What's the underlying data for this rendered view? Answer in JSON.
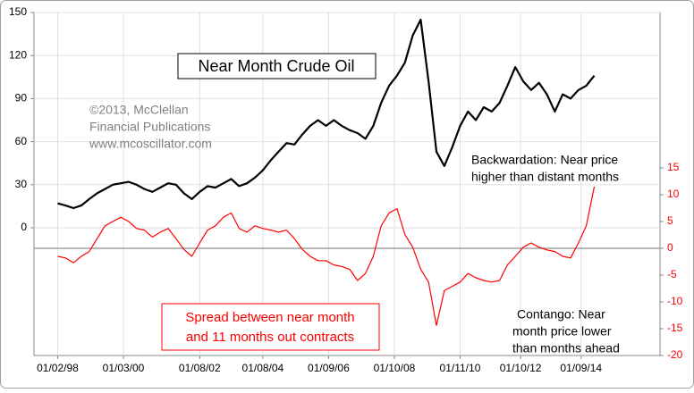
{
  "chart_data": {
    "type": "line",
    "title": "Near Month Crude Oil",
    "annotations": {
      "copyright": [
        "©2013, McClellan",
        "Financial Publications",
        "www.mcoscillator.com"
      ],
      "backwardation": [
        "Backwardation: Near price",
        "higher than distant months"
      ],
      "contango": [
        "Contango: Near",
        "month price lower",
        "than months ahead"
      ],
      "spread_note": [
        "Spread between near month",
        "and 11 months out contracts"
      ]
    },
    "x": [
      "01/02/98",
      "01/05/98",
      "01/08/98",
      "01/11/98",
      "01/02/99",
      "01/05/99",
      "01/08/99",
      "01/11/99",
      "01/02/00",
      "01/05/00",
      "01/08/00",
      "01/11/00",
      "01/02/01",
      "01/05/01",
      "01/08/01",
      "01/11/01",
      "01/02/02",
      "01/05/02",
      "01/08/02",
      "01/11/02",
      "01/02/03",
      "01/05/03",
      "01/08/03",
      "01/11/03",
      "01/02/04",
      "01/05/04",
      "01/08/04",
      "01/11/04",
      "01/02/05",
      "01/05/05",
      "01/08/05",
      "01/11/05",
      "01/02/06",
      "01/05/06",
      "01/08/06",
      "01/11/06",
      "01/02/07",
      "01/05/07",
      "01/08/07",
      "01/11/07",
      "01/02/08",
      "01/05/08",
      "01/08/08",
      "01/11/08",
      "01/02/09",
      "01/05/09",
      "01/08/09",
      "01/11/09",
      "01/02/10",
      "01/05/10",
      "01/08/10",
      "01/11/10",
      "01/02/11",
      "01/05/11",
      "01/08/11",
      "01/11/11",
      "01/02/12",
      "01/05/12",
      "01/08/12",
      "01/11/12",
      "01/02/13",
      "01/05/13",
      "01/08/13",
      "01/11/13",
      "01/02/14",
      "01/05/14",
      "01/08/14",
      "01/11/14",
      "01/02/15"
    ],
    "series": [
      {
        "name": "Near Month Crude Oil",
        "color": "#000000",
        "axis": "y",
        "values": [
          17,
          15.5,
          13.7,
          15.5,
          20,
          24,
          27,
          30,
          31,
          32,
          30,
          27,
          25,
          28,
          31,
          30,
          24,
          20,
          25,
          29,
          28,
          31,
          34,
          29,
          31,
          35,
          40,
          47,
          53,
          59,
          58,
          65,
          71,
          75,
          71,
          75,
          71,
          68,
          66,
          62,
          71,
          87,
          99,
          106,
          115,
          134,
          145,
          102,
          53,
          43,
          56,
          71,
          81,
          75,
          84,
          81,
          87,
          99,
          112,
          102,
          96,
          101,
          93,
          81,
          93,
          90,
          96,
          99,
          106
        ]
      },
      {
        "name": "Spread between near month and 11 months out contracts",
        "color": "#ff0000",
        "axis": "y2",
        "values": [
          -1.5,
          -1.8,
          -2.7,
          -1.5,
          -0.6,
          1.8,
          4.2,
          5,
          5.8,
          5,
          3.7,
          3.4,
          2.1,
          3,
          3.7,
          1.8,
          -0.2,
          -1.5,
          1,
          3.4,
          4.2,
          5.8,
          6.6,
          3.7,
          3,
          4.2,
          3.7,
          3.4,
          3,
          3.4,
          1.8,
          -0.2,
          -1.5,
          -2.3,
          -2.3,
          -3.1,
          -3.4,
          -3.9,
          -6,
          -4.7,
          -1.5,
          4.2,
          6.6,
          7.4,
          2.6,
          0.2,
          -3.9,
          -6.3,
          -14.4,
          -7.9,
          -7.1,
          -6.3,
          -4.7,
          -5.5,
          -6,
          -6.3,
          -6,
          -3.1,
          -1.5,
          0.2,
          1,
          0.2,
          -0.3,
          -0.6,
          -1.5,
          -1.8,
          1,
          4.2,
          11.5
        ]
      }
    ],
    "xlim": [
      "01/05/97",
      "01/03/17"
    ],
    "xticks": [
      "01/02/98",
      "01/03/00",
      "01/08/02",
      "01/08/04",
      "01/09/06",
      "01/10/08",
      "01/11/10",
      "01/10/12",
      "01/09/14"
    ],
    "ylim": [
      -89,
      150
    ],
    "yticks": [
      0,
      30,
      60,
      90,
      120,
      150
    ],
    "y2lim": [
      -20,
      44
    ],
    "y2ticks": [
      15,
      10,
      5,
      0,
      -5,
      -10,
      -15,
      -20
    ],
    "grid": true,
    "y2_zero_line": true
  }
}
